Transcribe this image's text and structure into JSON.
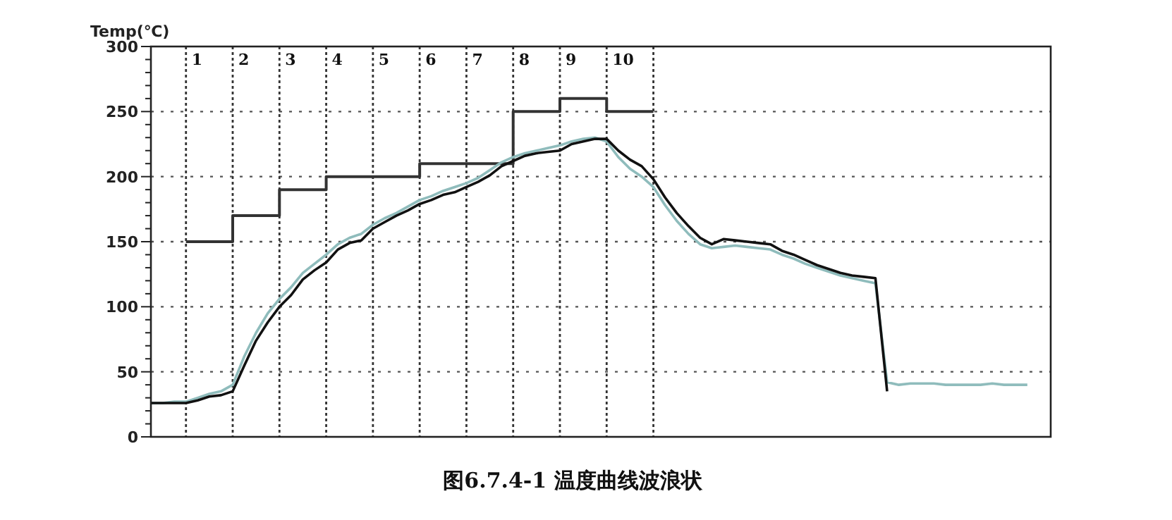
{
  "chart_data": {
    "type": "line",
    "ylabel": "Temp(℃)",
    "annotations": [
      "图6.7.4-1 温度曲线波浪状",
      "1",
      "2",
      "3",
      "4",
      "5",
      "6",
      "7",
      "8",
      "9",
      "10"
    ],
    "categories": [
      null,
      null,
      null,
      null,
      null,
      null,
      null,
      null,
      null,
      null,
      null,
      null,
      null,
      null,
      null,
      null,
      null,
      null,
      null,
      null,
      null,
      null,
      null,
      null,
      null,
      null,
      null,
      null,
      null,
      null,
      null,
      null,
      null,
      null,
      null,
      null,
      null,
      null,
      null,
      null,
      null,
      null,
      null,
      null,
      null,
      null,
      null,
      null,
      null,
      null,
      null,
      null,
      null,
      null,
      null,
      null,
      null,
      null,
      null,
      null,
      null,
      null,
      null,
      null,
      null,
      null,
      null,
      null,
      null,
      null,
      null,
      null,
      null,
      null,
      null,
      null,
      null,
      null
    ],
    "ylim": [
      0,
      300
    ],
    "yticks": [
      0,
      {
        "value": 10,
        "label": null
      },
      {
        "value": 20,
        "label": null
      },
      {
        "value": 30,
        "label": null
      },
      {
        "value": 40,
        "label": null
      },
      50,
      {
        "value": 60,
        "label": null
      },
      {
        "value": 70,
        "label": null
      },
      {
        "value": 80,
        "label": null
      },
      {
        "value": 90,
        "label": null
      },
      100,
      {
        "value": 110,
        "label": null
      },
      {
        "value": 120,
        "label": null
      },
      {
        "value": 130,
        "label": null
      },
      {
        "value": 140,
        "label": null
      },
      150,
      {
        "value": 160,
        "label": null
      },
      {
        "value": 170,
        "label": null
      },
      {
        "value": 180,
        "label": null
      },
      {
        "value": 190,
        "label": null
      },
      200,
      {
        "value": 210,
        "label": null
      },
      {
        "value": 220,
        "label": null
      },
      {
        "value": 230,
        "label": null
      },
      {
        "value": 240,
        "label": null
      },
      250,
      {
        "value": 260,
        "label": null
      },
      {
        "value": 270,
        "label": null
      },
      {
        "value": 280,
        "label": null
      },
      {
        "value": 290,
        "label": null
      },
      300
    ],
    "grid": true,
    "series": [
      {
        "type": "step",
        "color": "#333333",
        "values": [
          null,
          null,
          null,
          150,
          150,
          150,
          150,
          170,
          170,
          170,
          170,
          190,
          190,
          190,
          190,
          200,
          200,
          200,
          200,
          200,
          200,
          200,
          200,
          210,
          210,
          210,
          210,
          210,
          210,
          210,
          210,
          250,
          250,
          250,
          250,
          260,
          260,
          260,
          260,
          250,
          250,
          250,
          250,
          250,
          null,
          null,
          null,
          null,
          null,
          null,
          null,
          null,
          null,
          null,
          null,
          null,
          null,
          null,
          null,
          null,
          null,
          null,
          null,
          null,
          null,
          null,
          null,
          null,
          null,
          null,
          null,
          null,
          null,
          null,
          null,
          null,
          null,
          null
        ]
      },
      {
        "color": "#8fbcbc",
        "values": [
          26,
          26,
          27,
          27,
          30,
          33,
          35,
          40,
          62,
          80,
          95,
          106,
          115,
          126,
          133,
          140,
          148,
          153,
          156,
          163,
          168,
          172,
          177,
          182,
          185,
          189,
          192,
          195,
          199,
          205,
          211,
          215,
          218,
          220,
          222,
          224,
          227,
          229,
          230,
          227,
          215,
          206,
          200,
          192,
          178,
          166,
          156,
          148,
          145,
          146,
          147,
          146,
          145,
          144,
          140,
          137,
          133,
          130,
          127,
          124,
          122,
          120,
          118,
          42,
          40,
          41,
          41,
          41,
          40,
          40,
          40,
          40,
          41,
          40,
          40,
          40,
          null,
          null
        ]
      },
      {
        "color": "#111111",
        "values": [
          26,
          26,
          26,
          26,
          28,
          31,
          32,
          35,
          55,
          74,
          88,
          100,
          109,
          121,
          128,
          134,
          144,
          149,
          151,
          160,
          165,
          170,
          174,
          179,
          182,
          186,
          188,
          192,
          196,
          201,
          208,
          212,
          216,
          218,
          219,
          220,
          225,
          227,
          229,
          229,
          220,
          213,
          208,
          198,
          184,
          172,
          162,
          153,
          148,
          152,
          151,
          150,
          149,
          148,
          143,
          140,
          136,
          132,
          129,
          126,
          124,
          123,
          122,
          35,
          null,
          null,
          null,
          null,
          null,
          null,
          null,
          null,
          null,
          null,
          null,
          null,
          null,
          null
        ]
      }
    ]
  }
}
